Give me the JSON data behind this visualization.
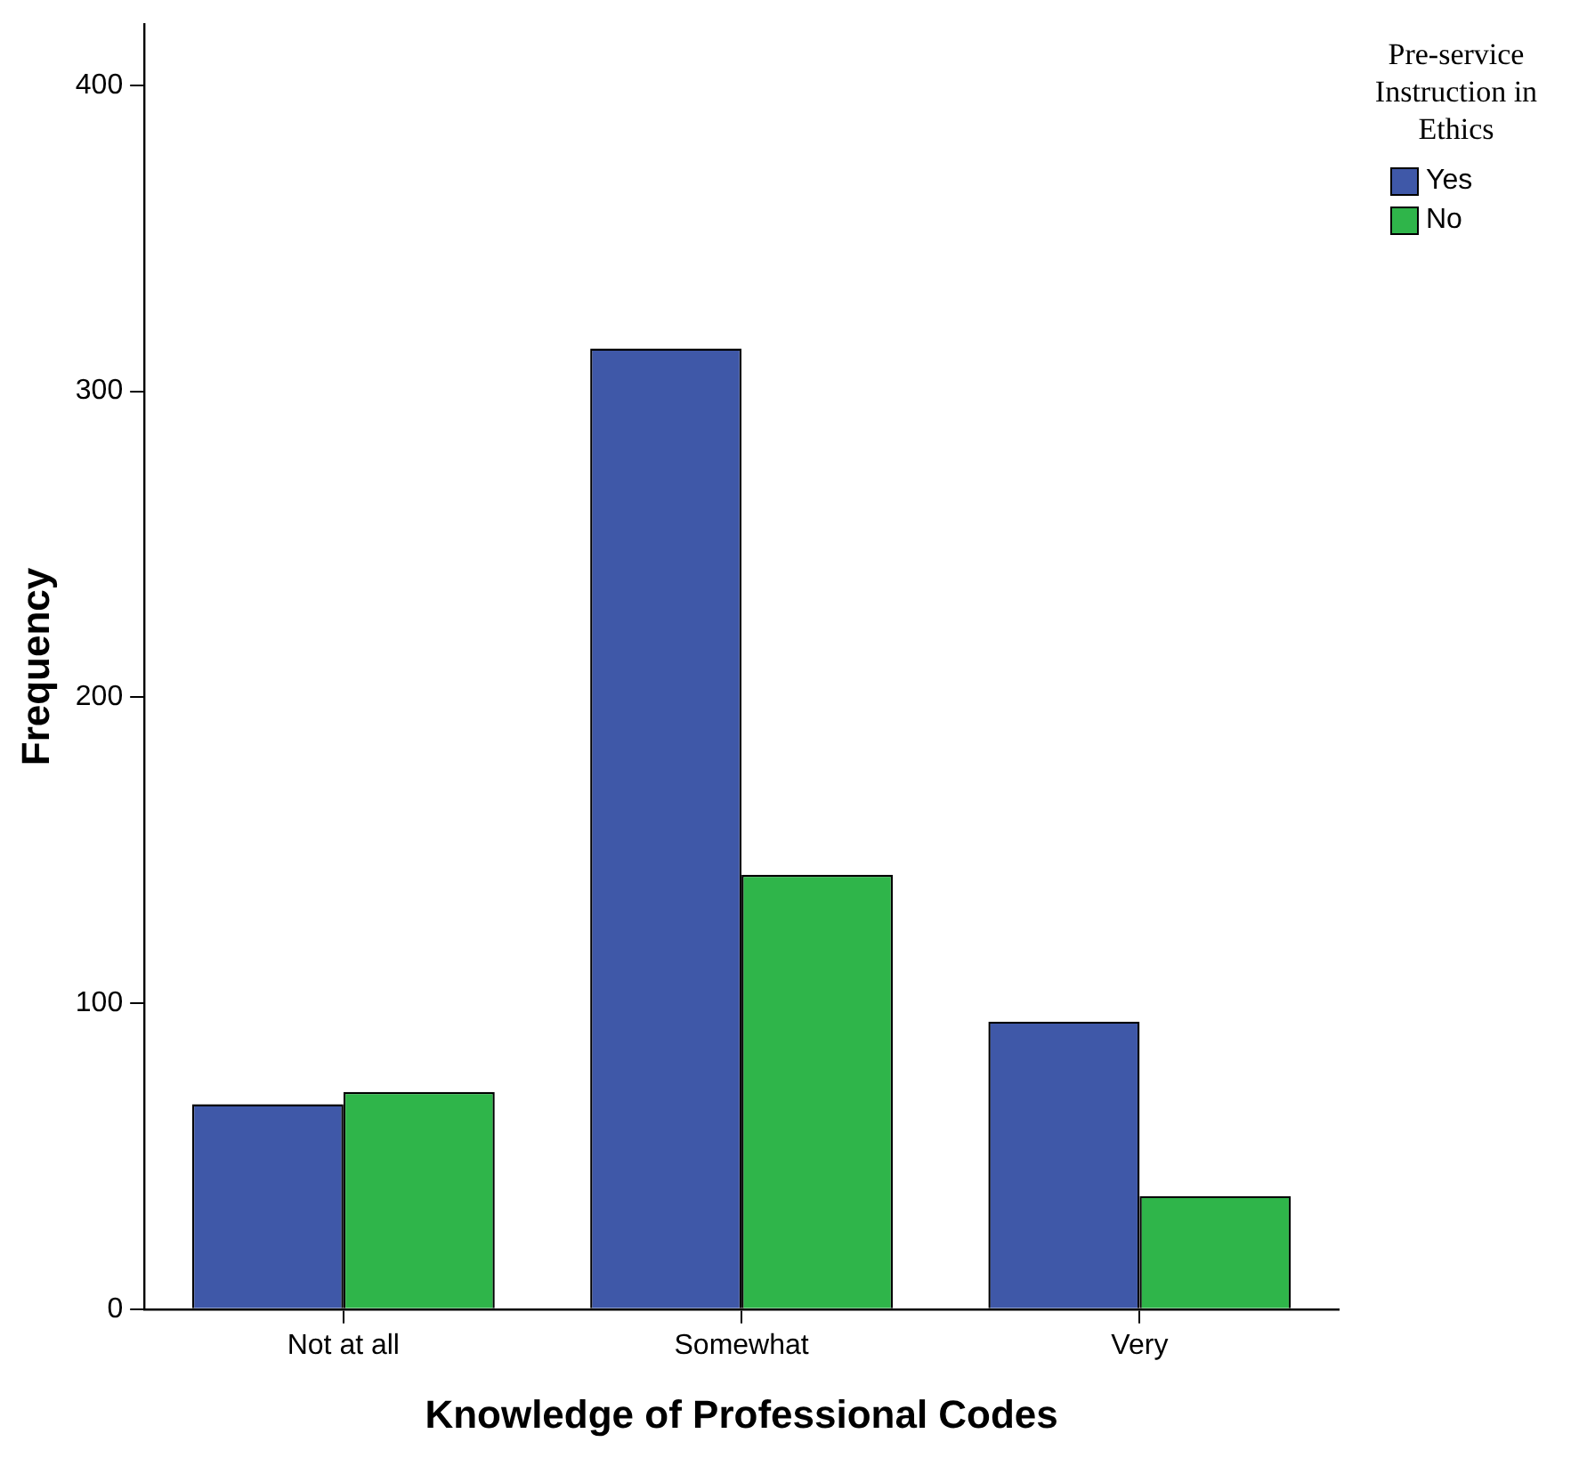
{
  "chart_data": {
    "type": "bar",
    "xlabel": "Knowledge of Professional Codes",
    "ylabel": "Frequency",
    "legend_title": "Pre-service Instruction in Ethics",
    "categories": [
      "Not at all",
      "Somewhat",
      "Very"
    ],
    "series": [
      {
        "name": "Yes",
        "color": "#3f58a8",
        "values": [
          67,
          314,
          94
        ]
      },
      {
        "name": "No",
        "color": "#2fb54a",
        "values": [
          71,
          142,
          37
        ]
      }
    ],
    "ylim": [
      0,
      420
    ],
    "yticks": [
      0,
      100,
      200,
      300,
      400
    ],
    "grid": false,
    "legend": "top right"
  }
}
